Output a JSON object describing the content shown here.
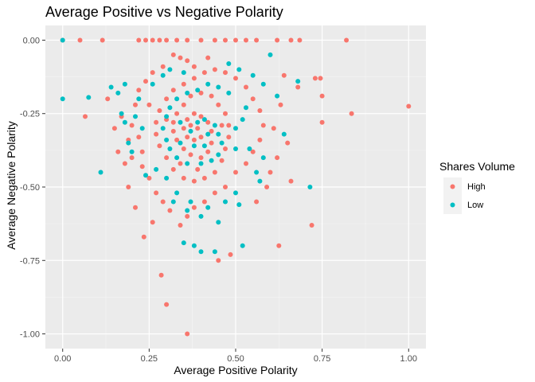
{
  "chart_data": {
    "type": "scatter",
    "title": "Average Positive vs Negative Polarity",
    "xlabel": "Average Positive Polarity",
    "ylabel": "Average Negative Polarity",
    "xlim": [
      -0.05,
      1.05
    ],
    "ylim": [
      -1.05,
      0.05
    ],
    "x_ticks": [
      0.0,
      0.25,
      0.5,
      0.75,
      1.0
    ],
    "x_tick_labels": [
      "0.00",
      "0.25",
      "0.50",
      "0.75",
      "1.00"
    ],
    "y_ticks": [
      0.0,
      -0.25,
      -0.5,
      -0.75,
      -1.0
    ],
    "y_tick_labels": [
      "0.00",
      "-0.25",
      "-0.50",
      "-0.75",
      "-1.00"
    ],
    "grid": true,
    "panel_background": "#ebebeb",
    "legend": {
      "title": "Shares Volume",
      "position": "right",
      "entries": [
        {
          "label": "High",
          "color": "#f8766d"
        },
        {
          "label": "Low",
          "color": "#00bfc4"
        }
      ]
    },
    "series": [
      {
        "name": "High",
        "color": "#f8766d",
        "points": [
          [
            0.0,
            0.0
          ],
          [
            0.05,
            0.0
          ],
          [
            0.115,
            0.0
          ],
          [
            0.22,
            0.0
          ],
          [
            0.24,
            0.0
          ],
          [
            0.26,
            0.0
          ],
          [
            0.28,
            0.0
          ],
          [
            0.3,
            0.0
          ],
          [
            0.33,
            0.0
          ],
          [
            0.36,
            0.0
          ],
          [
            0.4,
            0.0
          ],
          [
            0.44,
            0.0
          ],
          [
            0.47,
            0.0
          ],
          [
            0.5,
            0.0
          ],
          [
            0.53,
            0.0
          ],
          [
            0.56,
            0.0
          ],
          [
            0.62,
            0.0
          ],
          [
            0.66,
            0.0
          ],
          [
            0.685,
            0.0
          ],
          [
            0.82,
            0.0
          ],
          [
            0.065,
            -0.26
          ],
          [
            0.13,
            -0.2
          ],
          [
            0.19,
            -0.5
          ],
          [
            0.2,
            -0.4
          ],
          [
            0.21,
            -0.57
          ],
          [
            0.235,
            -0.67
          ],
          [
            0.26,
            -0.62
          ],
          [
            0.285,
            -0.8
          ],
          [
            0.3,
            -0.9
          ],
          [
            0.36,
            -1.0
          ],
          [
            0.45,
            -0.75
          ],
          [
            0.485,
            -0.73
          ],
          [
            0.625,
            -0.7
          ],
          [
            0.72,
            -0.63
          ],
          [
            0.75,
            -0.28
          ],
          [
            0.745,
            -0.13
          ],
          [
            0.73,
            -0.13
          ],
          [
            0.75,
            -0.19
          ],
          [
            0.835,
            -0.25
          ],
          [
            1.0,
            -0.225
          ],
          [
            0.32,
            -0.05
          ],
          [
            0.34,
            -0.06
          ],
          [
            0.36,
            -0.07
          ],
          [
            0.42,
            -0.06
          ],
          [
            0.38,
            -0.09
          ],
          [
            0.29,
            -0.09
          ],
          [
            0.26,
            -0.11
          ],
          [
            0.24,
            -0.14
          ],
          [
            0.22,
            -0.17
          ],
          [
            0.21,
            -0.22
          ],
          [
            0.2,
            -0.29
          ],
          [
            0.22,
            -0.33
          ],
          [
            0.23,
            -0.38
          ],
          [
            0.23,
            -0.43
          ],
          [
            0.25,
            -0.47
          ],
          [
            0.27,
            -0.52
          ],
          [
            0.29,
            -0.55
          ],
          [
            0.31,
            -0.58
          ],
          [
            0.34,
            -0.63
          ],
          [
            0.36,
            -0.6
          ],
          [
            0.38,
            -0.57
          ],
          [
            0.41,
            -0.55
          ],
          [
            0.44,
            -0.52
          ],
          [
            0.47,
            -0.5
          ],
          [
            0.5,
            -0.45
          ],
          [
            0.53,
            -0.42
          ],
          [
            0.55,
            -0.38
          ],
          [
            0.57,
            -0.34
          ],
          [
            0.58,
            -0.29
          ],
          [
            0.57,
            -0.24
          ],
          [
            0.55,
            -0.2
          ],
          [
            0.53,
            -0.16
          ],
          [
            0.5,
            -0.13
          ],
          [
            0.47,
            -0.11
          ],
          [
            0.44,
            -0.1
          ],
          [
            0.41,
            -0.11
          ],
          [
            0.38,
            -0.13
          ],
          [
            0.35,
            -0.15
          ],
          [
            0.32,
            -0.17
          ],
          [
            0.3,
            -0.2
          ],
          [
            0.28,
            -0.24
          ],
          [
            0.27,
            -0.28
          ],
          [
            0.27,
            -0.32
          ],
          [
            0.28,
            -0.36
          ],
          [
            0.3,
            -0.4
          ],
          [
            0.32,
            -0.44
          ],
          [
            0.35,
            -0.47
          ],
          [
            0.38,
            -0.48
          ],
          [
            0.41,
            -0.47
          ],
          [
            0.44,
            -0.45
          ],
          [
            0.46,
            -0.41
          ],
          [
            0.47,
            -0.37
          ],
          [
            0.48,
            -0.33
          ],
          [
            0.48,
            -0.29
          ],
          [
            0.47,
            -0.25
          ],
          [
            0.45,
            -0.22
          ],
          [
            0.43,
            -0.19
          ],
          [
            0.4,
            -0.18
          ],
          [
            0.37,
            -0.19
          ],
          [
            0.35,
            -0.22
          ],
          [
            0.33,
            -0.25
          ],
          [
            0.32,
            -0.28
          ],
          [
            0.32,
            -0.31
          ],
          [
            0.33,
            -0.34
          ],
          [
            0.35,
            -0.37
          ],
          [
            0.37,
            -0.39
          ],
          [
            0.4,
            -0.4
          ],
          [
            0.42,
            -0.38
          ],
          [
            0.43,
            -0.35
          ],
          [
            0.43,
            -0.31
          ],
          [
            0.42,
            -0.28
          ],
          [
            0.4,
            -0.26
          ],
          [
            0.38,
            -0.25
          ],
          [
            0.36,
            -0.27
          ],
          [
            0.35,
            -0.3
          ],
          [
            0.36,
            -0.33
          ],
          [
            0.38,
            -0.34
          ],
          [
            0.4,
            -0.33
          ],
          [
            0.39,
            -0.3
          ],
          [
            0.37,
            -0.29
          ],
          [
            0.61,
            -0.3
          ],
          [
            0.63,
            -0.22
          ],
          [
            0.65,
            -0.35
          ],
          [
            0.6,
            -0.45
          ],
          [
            0.66,
            -0.48
          ],
          [
            0.68,
            -0.16
          ],
          [
            0.64,
            -0.12
          ],
          [
            0.62,
            -0.4
          ],
          [
            0.59,
            -0.5
          ],
          [
            0.56,
            -0.55
          ],
          [
            0.15,
            -0.3
          ],
          [
            0.17,
            -0.26
          ],
          [
            0.18,
            -0.42
          ],
          [
            0.16,
            -0.38
          ],
          [
            0.19,
            -0.34
          ],
          [
            0.25,
            -0.22
          ],
          [
            0.3,
            -0.27
          ],
          [
            0.34,
            -0.42
          ],
          [
            0.39,
            -0.44
          ],
          [
            0.46,
            -0.29
          ]
        ]
      },
      {
        "name": "Low",
        "color": "#00bfc4",
        "points": [
          [
            0.0,
            -0.2
          ],
          [
            0.0,
            0.0
          ],
          [
            0.075,
            -0.195
          ],
          [
            0.11,
            -0.45
          ],
          [
            0.14,
            -0.16
          ],
          [
            0.16,
            -0.18
          ],
          [
            0.18,
            -0.15
          ],
          [
            0.17,
            -0.25
          ],
          [
            0.18,
            -0.28
          ],
          [
            0.19,
            -0.35
          ],
          [
            0.2,
            -0.38
          ],
          [
            0.21,
            -0.26
          ],
          [
            0.52,
            -0.7
          ],
          [
            0.35,
            -0.69
          ],
          [
            0.38,
            -0.7
          ],
          [
            0.4,
            -0.72
          ],
          [
            0.44,
            -0.72
          ],
          [
            0.6,
            -0.05
          ],
          [
            0.68,
            -0.14
          ],
          [
            0.715,
            -0.5
          ],
          [
            0.62,
            -0.19
          ],
          [
            0.64,
            -0.32
          ],
          [
            0.56,
            -0.45
          ],
          [
            0.54,
            -0.37
          ],
          [
            0.5,
            -0.37
          ],
          [
            0.52,
            -0.27
          ],
          [
            0.53,
            -0.23
          ],
          [
            0.48,
            -0.18
          ],
          [
            0.45,
            -0.16
          ],
          [
            0.42,
            -0.15
          ],
          [
            0.39,
            -0.17
          ],
          [
            0.36,
            -0.18
          ],
          [
            0.33,
            -0.2
          ],
          [
            0.31,
            -0.23
          ],
          [
            0.3,
            -0.26
          ],
          [
            0.29,
            -0.3
          ],
          [
            0.3,
            -0.34
          ],
          [
            0.31,
            -0.37
          ],
          [
            0.33,
            -0.4
          ],
          [
            0.36,
            -0.42
          ],
          [
            0.4,
            -0.42
          ],
          [
            0.43,
            -0.41
          ],
          [
            0.45,
            -0.39
          ],
          [
            0.46,
            -0.35
          ],
          [
            0.45,
            -0.32
          ],
          [
            0.44,
            -0.29
          ],
          [
            0.41,
            -0.27
          ],
          [
            0.39,
            -0.28
          ],
          [
            0.37,
            -0.31
          ],
          [
            0.38,
            -0.36
          ],
          [
            0.41,
            -0.36
          ],
          [
            0.42,
            -0.32
          ],
          [
            0.34,
            -0.35
          ],
          [
            0.34,
            -0.28
          ],
          [
            0.27,
            -0.44
          ],
          [
            0.3,
            -0.47
          ],
          [
            0.33,
            -0.52
          ],
          [
            0.37,
            -0.55
          ],
          [
            0.42,
            -0.57
          ],
          [
            0.47,
            -0.55
          ],
          [
            0.5,
            -0.52
          ],
          [
            0.26,
            -0.15
          ],
          [
            0.29,
            -0.12
          ],
          [
            0.31,
            -0.1
          ],
          [
            0.35,
            -0.11
          ],
          [
            0.48,
            -0.08
          ],
          [
            0.51,
            -0.1
          ],
          [
            0.55,
            -0.12
          ],
          [
            0.58,
            -0.15
          ],
          [
            0.58,
            -0.4
          ],
          [
            0.57,
            -0.48
          ],
          [
            0.51,
            -0.56
          ],
          [
            0.45,
            -0.62
          ],
          [
            0.4,
            -0.6
          ],
          [
            0.36,
            -0.58
          ],
          [
            0.32,
            -0.55
          ],
          [
            0.24,
            -0.46
          ],
          [
            0.22,
            -0.2
          ],
          [
            0.23,
            -0.3
          ],
          [
            0.5,
            -0.3
          ]
        ]
      }
    ]
  }
}
